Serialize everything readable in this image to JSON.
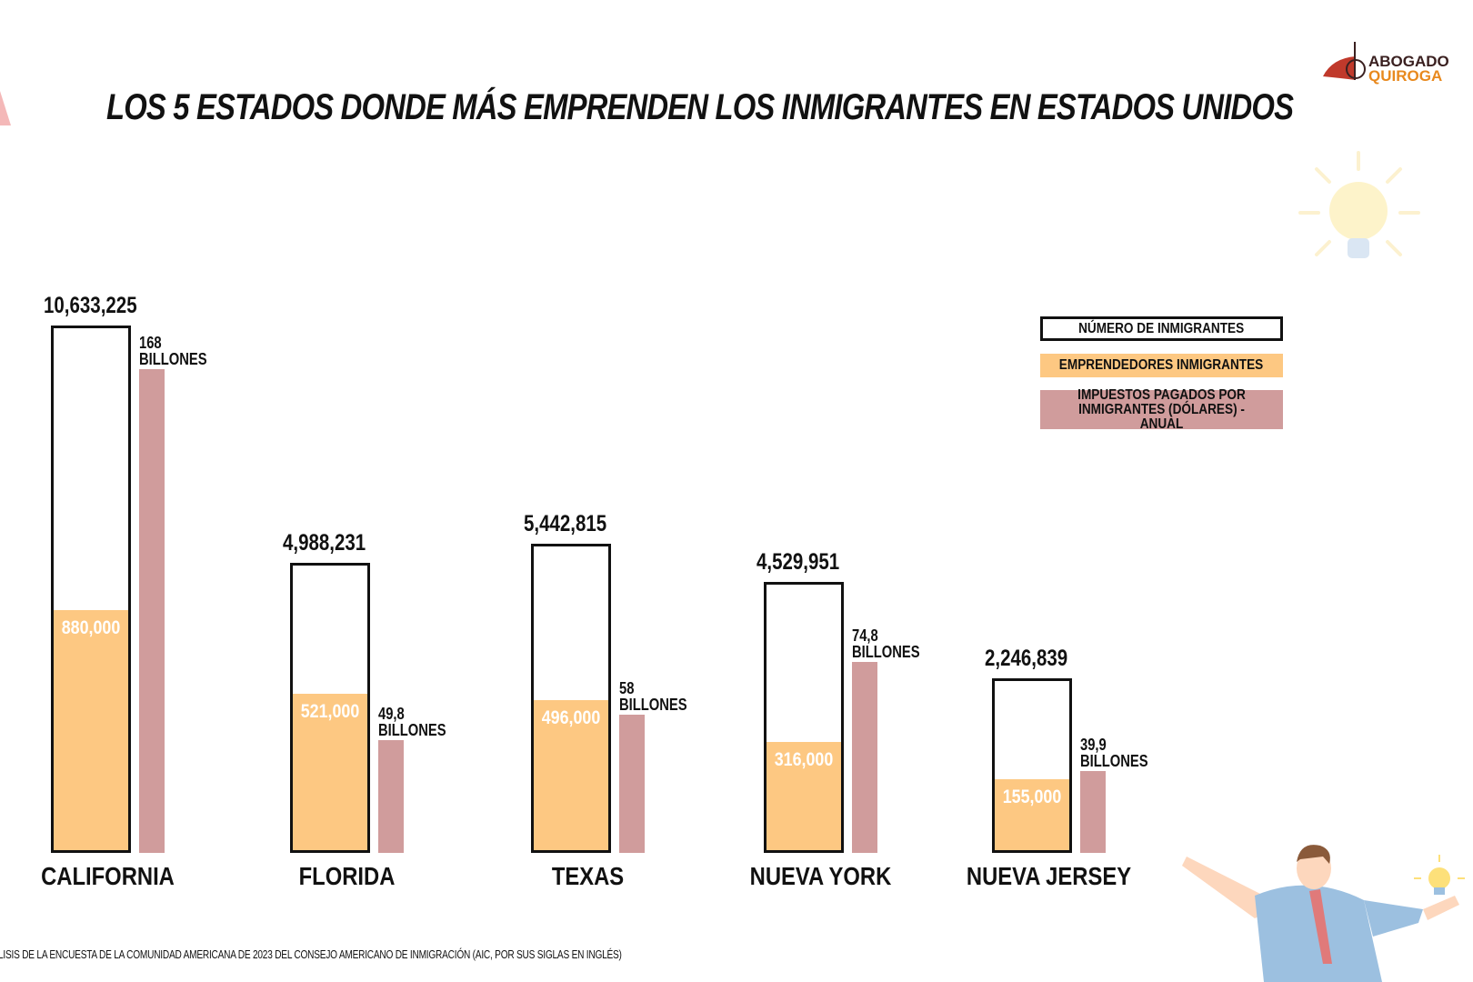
{
  "title": "LOS 5 ESTADOS DONDE MÁS EMPRENDEN LOS INMIGRANTES EN ESTADOS UNIDOS",
  "logo": {
    "line1": "ABOGADO",
    "line2": "QUIROGA"
  },
  "footer": "LISIS DE LA ENCUESTA DE LA COMUNIDAD AMERICANA DE 2023 DEL CONSEJO AMERICANO DE INMIGRACIÓN (AIC, POR SUS SIGLAS EN INGLÉS)",
  "colors": {
    "white_bar": "#ffffff",
    "outline": "#111111",
    "orange": "#fdc882",
    "pink": "#d09c9c"
  },
  "chart_data": {
    "type": "bar",
    "title": "LOS 5 ESTADOS DONDE MÁS EMPRENDEN LOS INMIGRANTES EN ESTADOS UNIDOS",
    "categories": [
      "CALIFORNIA",
      "FLORIDA",
      "TEXAS",
      "NUEVA YORK",
      "NUEVA JERSEY"
    ],
    "legend_position": "top-right",
    "series": [
      {
        "name": "NÚMERO DE INMIGRANTES",
        "values": [
          10633225,
          4988231,
          5442815,
          4529951,
          2246839
        ],
        "labels": [
          "10,633,225",
          "4,988,231",
          "5,442,815",
          "4,529,951",
          "2,246,839"
        ]
      },
      {
        "name": "EMPRENDEDORES INMIGRANTES",
        "values": [
          880000,
          521000,
          496000,
          316000,
          155000
        ],
        "labels": [
          "880,000",
          "521,000",
          "496,000",
          "316,000",
          "155,000"
        ]
      },
      {
        "name": "IMPUESTOS PAGADOS POR INMIGRANTES (DÓLARES) - ANUAL",
        "values": [
          168,
          49.8,
          58,
          74.8,
          39.9
        ],
        "labels": [
          "168",
          "49,8",
          "58",
          "74,8",
          "39,9"
        ],
        "unit": "BILLONES"
      }
    ]
  }
}
